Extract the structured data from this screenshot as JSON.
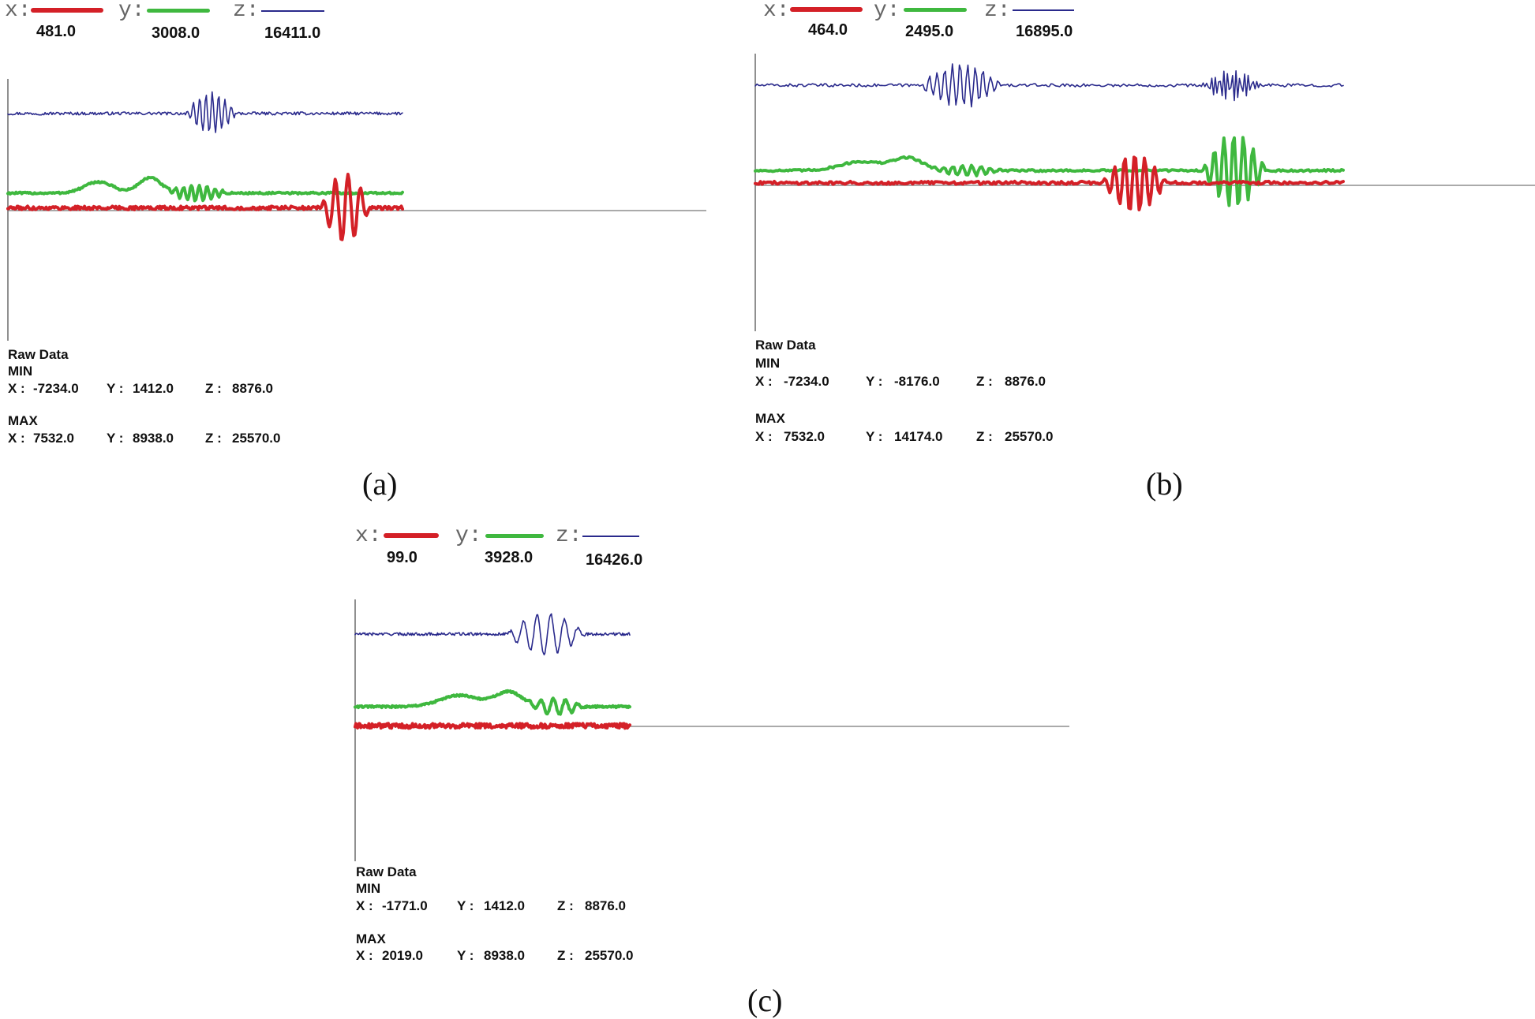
{
  "chart_data": [
    {
      "type": "line",
      "panel_label": "(a)",
      "legend": [
        {
          "key": "x:",
          "color": "#d42027",
          "value": "481.0"
        },
        {
          "key": "y:",
          "color": "#3fb83f",
          "value": "3008.0"
        },
        {
          "key": "z:",
          "color": "#2a2a8c",
          "value": "16411.0"
        }
      ],
      "stats": {
        "title": "Raw Data",
        "min_label": "MIN",
        "max_label": "MAX",
        "min": [
          {
            "axis": "X :",
            "value": "-7234.0"
          },
          {
            "axis": "Y :",
            "value": "1412.0"
          },
          {
            "axis": "Z :",
            "value": "8876.0"
          }
        ],
        "max": [
          {
            "axis": "X :",
            "value": "7532.0"
          },
          {
            "axis": "Y :",
            "value": "8938.0"
          },
          {
            "axis": "Z :",
            "value": "25570.0"
          }
        ]
      },
      "series": [
        {
          "key": "z",
          "color": "#2a2a8c",
          "width": 1.6,
          "baseline": 16400,
          "noise": 250,
          "events": [
            {
              "start": 0.45,
              "end": 0.58,
              "amp": 3500,
              "period": 0.016
            }
          ]
        },
        {
          "key": "y",
          "color": "#3fb83f",
          "width": 4,
          "baseline": 2950,
          "noise": 160,
          "bumps": [
            {
              "center": 0.23,
              "width": 0.05,
              "height": 1900
            },
            {
              "center": 0.36,
              "width": 0.04,
              "height": 2600
            }
          ],
          "events": [
            {
              "start": 0.4,
              "end": 0.56,
              "amp": 1300,
              "period": 0.02
            }
          ]
        },
        {
          "key": "x",
          "color": "#d42027",
          "width": 4,
          "baseline": 450,
          "noise": 300,
          "events": [
            {
              "start": 0.79,
              "end": 0.92,
              "amp": 5600,
              "period": 0.032
            }
          ]
        }
      ]
    },
    {
      "type": "line",
      "panel_label": "(b)",
      "legend": [
        {
          "key": "x:",
          "color": "#d42027",
          "value": "464.0"
        },
        {
          "key": "y:",
          "color": "#3fb83f",
          "value": "2495.0"
        },
        {
          "key": "z:",
          "color": "#2a2a8c",
          "value": "16895.0"
        }
      ],
      "stats": {
        "title": "Raw Data",
        "min_label": "MIN",
        "max_label": "MAX",
        "min": [
          {
            "axis": "X :",
            "value": "-7234.0"
          },
          {
            "axis": "Y :",
            "value": "-8176.0"
          },
          {
            "axis": "Z :",
            "value": "8876.0"
          }
        ],
        "max": [
          {
            "axis": "X :",
            "value": "7532.0"
          },
          {
            "axis": "Y :",
            "value": "14174.0"
          },
          {
            "axis": "Z :",
            "value": "25570.0"
          }
        ]
      },
      "series": [
        {
          "key": "z",
          "color": "#2a2a8c",
          "width": 1.6,
          "baseline": 16900,
          "noise": 260,
          "events": [
            {
              "start": 0.28,
              "end": 0.42,
              "amp": 3800,
              "period": 0.013
            },
            {
              "start": 0.76,
              "end": 0.86,
              "amp": 2600,
              "period": 0.007
            }
          ]
        },
        {
          "key": "y",
          "color": "#3fb83f",
          "width": 4,
          "baseline": 2500,
          "noise": 170,
          "bumps": [
            {
              "center": 0.18,
              "width": 0.05,
              "height": 1500
            },
            {
              "center": 0.26,
              "width": 0.035,
              "height": 2100
            }
          ],
          "events": [
            {
              "start": 0.3,
              "end": 0.42,
              "amp": 900,
              "period": 0.016
            },
            {
              "start": 0.76,
              "end": 0.87,
              "amp": 6200,
              "period": 0.0165
            }
          ]
        },
        {
          "key": "x",
          "color": "#d42027",
          "width": 4,
          "baseline": 420,
          "noise": 260,
          "events": [
            {
              "start": 0.59,
              "end": 0.7,
              "amp": 5000,
              "period": 0.017
            }
          ]
        }
      ]
    },
    {
      "type": "line",
      "panel_label": "(c)",
      "legend": [
        {
          "key": "x:",
          "color": "#d42027",
          "value": "99.0"
        },
        {
          "key": "y:",
          "color": "#3fb83f",
          "value": "3928.0"
        },
        {
          "key": "z:",
          "color": "#2a2a8c",
          "value": "16426.0"
        }
      ],
      "stats": {
        "title": "Raw Data",
        "min_label": "MIN",
        "max_label": "MAX",
        "min": [
          {
            "axis": "X :",
            "value": "-1771.0"
          },
          {
            "axis": "Y :",
            "value": "1412.0"
          },
          {
            "axis": "Z :",
            "value": "8876.0"
          }
        ],
        "max": [
          {
            "axis": "X :",
            "value": "2019.0"
          },
          {
            "axis": "Y :",
            "value": "8938.0"
          },
          {
            "axis": "Z :",
            "value": "25570.0"
          }
        ]
      },
      "series": [
        {
          "key": "z",
          "color": "#2a2a8c",
          "width": 1.6,
          "baseline": 16400,
          "noise": 250,
          "events": [
            {
              "start": 0.55,
              "end": 0.84,
              "amp": 3600,
              "period": 0.05
            }
          ]
        },
        {
          "key": "y",
          "color": "#3fb83f",
          "width": 4,
          "baseline": 3500,
          "noise": 160,
          "bumps": [
            {
              "center": 0.38,
              "width": 0.1,
              "height": 2000
            },
            {
              "center": 0.56,
              "width": 0.07,
              "height": 2600
            }
          ],
          "events": [
            {
              "start": 0.62,
              "end": 0.84,
              "amp": 1400,
              "period": 0.045
            }
          ]
        },
        {
          "key": "x",
          "color": "#d42027",
          "width": 4,
          "baseline": 100,
          "noise": 420,
          "events": []
        }
      ]
    }
  ]
}
